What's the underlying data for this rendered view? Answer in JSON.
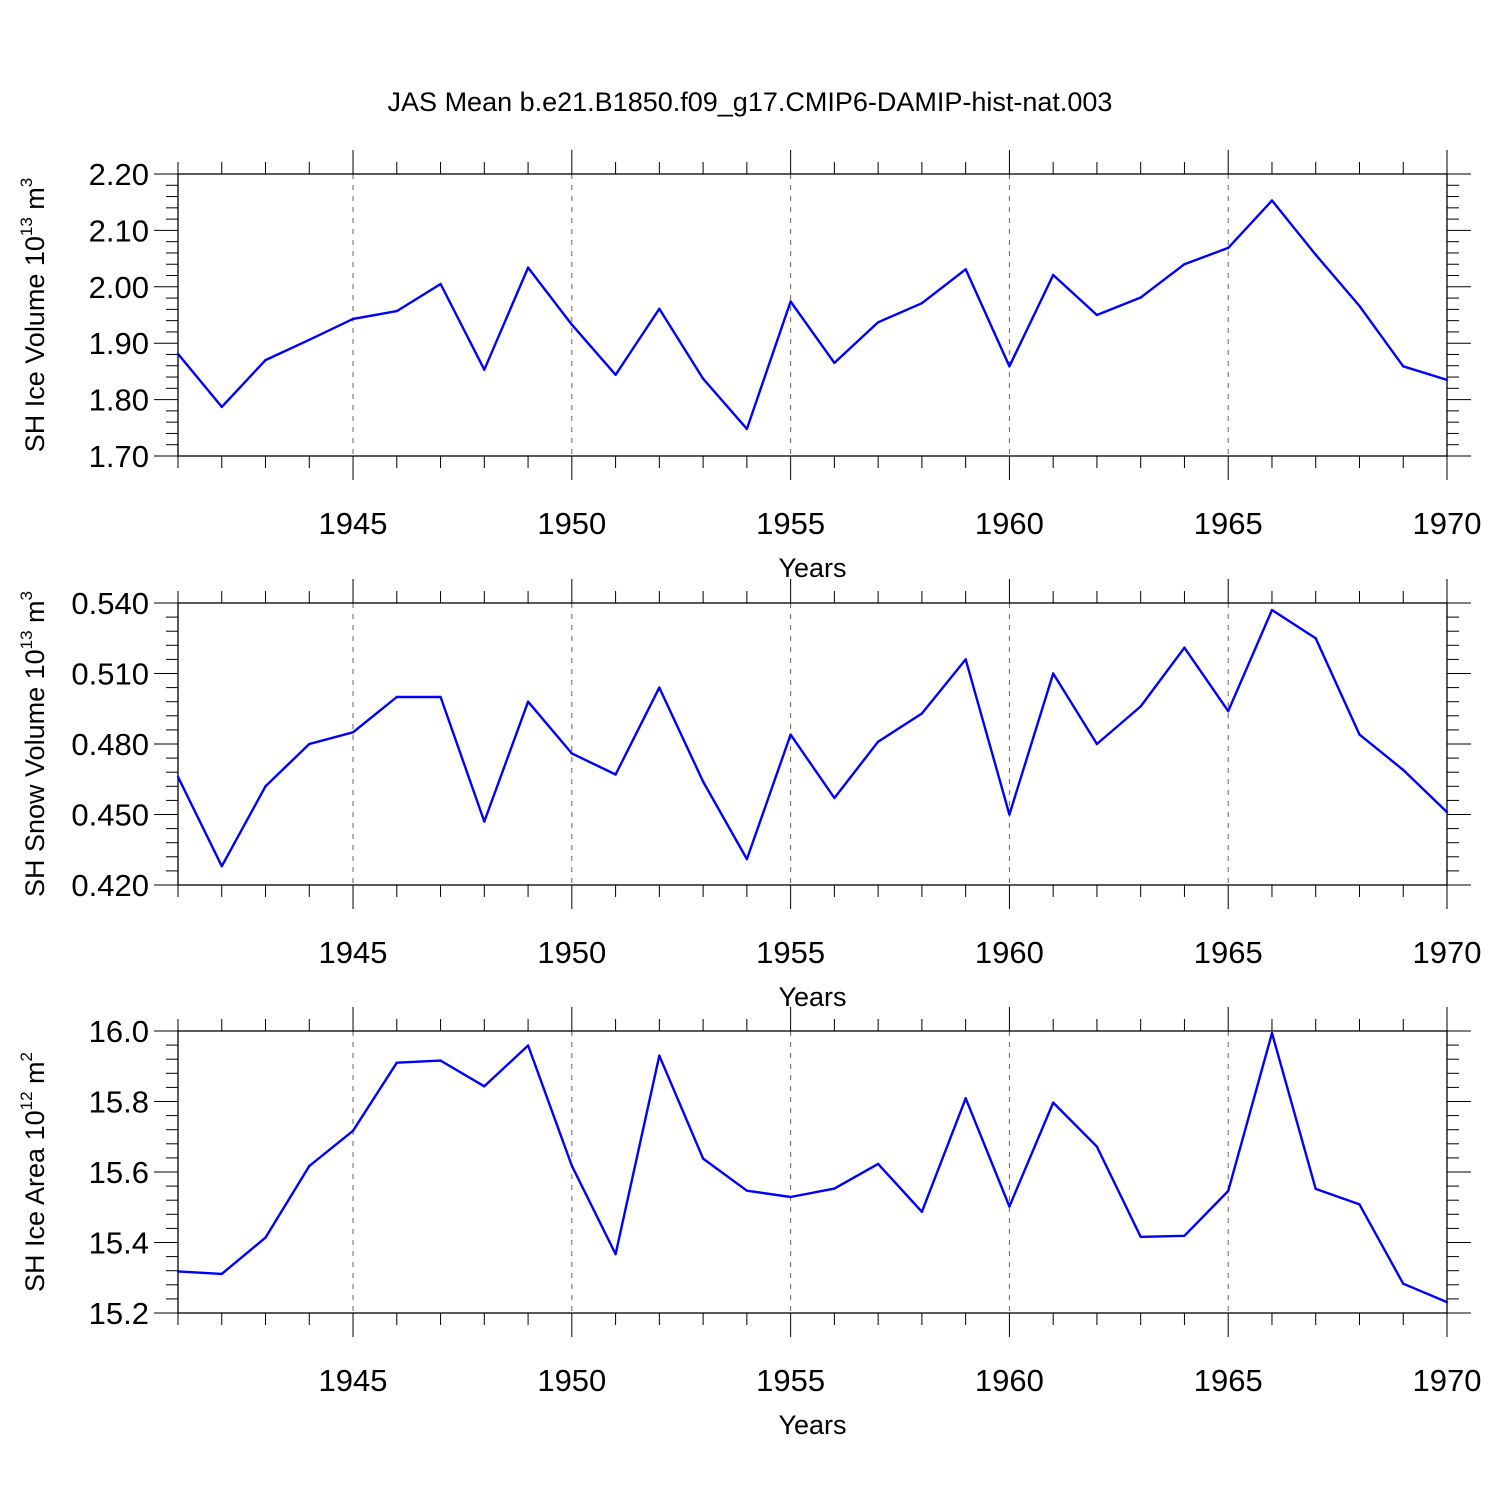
{
  "figure_title": "JAS Mean b.e21.B1850.f09_g17.CMIP6-DAMIP-hist-nat.003",
  "line_color": "#0000ff",
  "chart_data": [
    {
      "type": "line",
      "ylabel_main": "SH Ice Volume 10",
      "ylabel_exp": "13",
      "ylabel_unit": " m",
      "ylabel_unit_exp": "3",
      "xlabel": "Years",
      "xlim": [
        1941,
        1970
      ],
      "ylim": [
        1.7,
        2.2
      ],
      "y_ticks": [
        "1.70",
        "1.80",
        "1.90",
        "2.00",
        "2.10",
        "2.20"
      ],
      "y_minor_step": 0.02,
      "x_ticks": [
        "1945",
        "1950",
        "1955",
        "1960",
        "1965",
        "1970"
      ],
      "x_minor_step": 1,
      "grid": "vertical dashed at major x ticks",
      "x": [
        1941,
        1942,
        1943,
        1944,
        1945,
        1946,
        1947,
        1948,
        1949,
        1950,
        1951,
        1952,
        1953,
        1954,
        1955,
        1956,
        1957,
        1958,
        1959,
        1960,
        1961,
        1962,
        1963,
        1964,
        1965,
        1966,
        1967,
        1968,
        1969,
        1970
      ],
      "values": [
        1.881,
        1.787,
        1.87,
        1.906,
        1.943,
        1.957,
        2.005,
        1.853,
        2.034,
        1.933,
        1.844,
        1.961,
        1.837,
        1.748,
        1.974,
        1.865,
        1.937,
        1.971,
        2.031,
        1.859,
        2.021,
        1.95,
        1.981,
        2.04,
        2.069,
        2.153,
        2.057,
        1.966,
        1.859,
        1.835
      ]
    },
    {
      "type": "line",
      "ylabel_main": "SH Snow Volume 10",
      "ylabel_exp": "13",
      "ylabel_unit": " m",
      "ylabel_unit_exp": "3",
      "xlabel": "Years",
      "xlim": [
        1941,
        1970
      ],
      "ylim": [
        0.42,
        0.54
      ],
      "y_ticks": [
        "0.420",
        "0.450",
        "0.480",
        "0.510",
        "0.540"
      ],
      "y_minor_step": 0.006,
      "x_ticks": [
        "1945",
        "1950",
        "1955",
        "1960",
        "1965",
        "1970"
      ],
      "x_minor_step": 1,
      "grid": "vertical dashed at major x ticks",
      "x": [
        1941,
        1942,
        1943,
        1944,
        1945,
        1946,
        1947,
        1948,
        1949,
        1950,
        1951,
        1952,
        1953,
        1954,
        1955,
        1956,
        1957,
        1958,
        1959,
        1960,
        1961,
        1962,
        1963,
        1964,
        1965,
        1966,
        1967,
        1968,
        1969,
        1970
      ],
      "values": [
        0.466,
        0.428,
        0.462,
        0.48,
        0.485,
        0.5,
        0.5,
        0.447,
        0.498,
        0.476,
        0.467,
        0.504,
        0.464,
        0.431,
        0.484,
        0.457,
        0.481,
        0.493,
        0.516,
        0.45,
        0.51,
        0.48,
        0.496,
        0.521,
        0.494,
        0.537,
        0.525,
        0.484,
        0.469,
        0.451
      ]
    },
    {
      "type": "line",
      "ylabel_main": "SH Ice Area 10",
      "ylabel_exp": "12",
      "ylabel_unit": " m",
      "ylabel_unit_exp": "2",
      "xlabel": "Years",
      "xlim": [
        1941,
        1970
      ],
      "ylim": [
        15.2,
        16.0
      ],
      "y_ticks": [
        "15.2",
        "15.4",
        "15.6",
        "15.8",
        "16.0"
      ],
      "y_minor_step": 0.04,
      "x_ticks": [
        "1945",
        "1950",
        "1955",
        "1960",
        "1965",
        "1970"
      ],
      "x_minor_step": 1,
      "grid": "vertical dashed at major x ticks",
      "x": [
        1941,
        1942,
        1943,
        1944,
        1945,
        1946,
        1947,
        1948,
        1949,
        1950,
        1951,
        1952,
        1953,
        1954,
        1955,
        1956,
        1957,
        1958,
        1959,
        1960,
        1961,
        1962,
        1963,
        1964,
        1965,
        1966,
        1967,
        1968,
        1969,
        1970
      ],
      "values": [
        15.318,
        15.311,
        15.414,
        15.617,
        15.717,
        15.91,
        15.916,
        15.843,
        15.959,
        15.618,
        15.367,
        15.93,
        15.638,
        15.547,
        15.529,
        15.553,
        15.623,
        15.487,
        15.809,
        15.502,
        15.797,
        15.672,
        15.416,
        15.419,
        15.546,
        15.994,
        15.552,
        15.508,
        15.283,
        15.231
      ]
    }
  ]
}
